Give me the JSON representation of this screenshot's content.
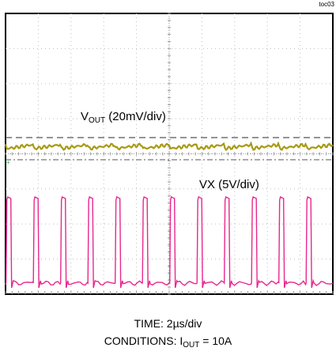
{
  "tag": "toc03",
  "chart_data": {
    "type": "line",
    "title": "",
    "time_base": "TIME: 2µs/div",
    "conditions": {
      "prefix": "CONDITIONS: I",
      "sub": "OUT",
      "suffix": " = 10A"
    },
    "series": [
      {
        "label_main": "V",
        "label_sub": "OUT",
        "label_rest": " (20mV/div)",
        "color": "#a89a14"
      },
      {
        "label": "VX (5V/div)",
        "color": "#e8288c"
      }
    ],
    "vx_pulse_count": 12
  }
}
